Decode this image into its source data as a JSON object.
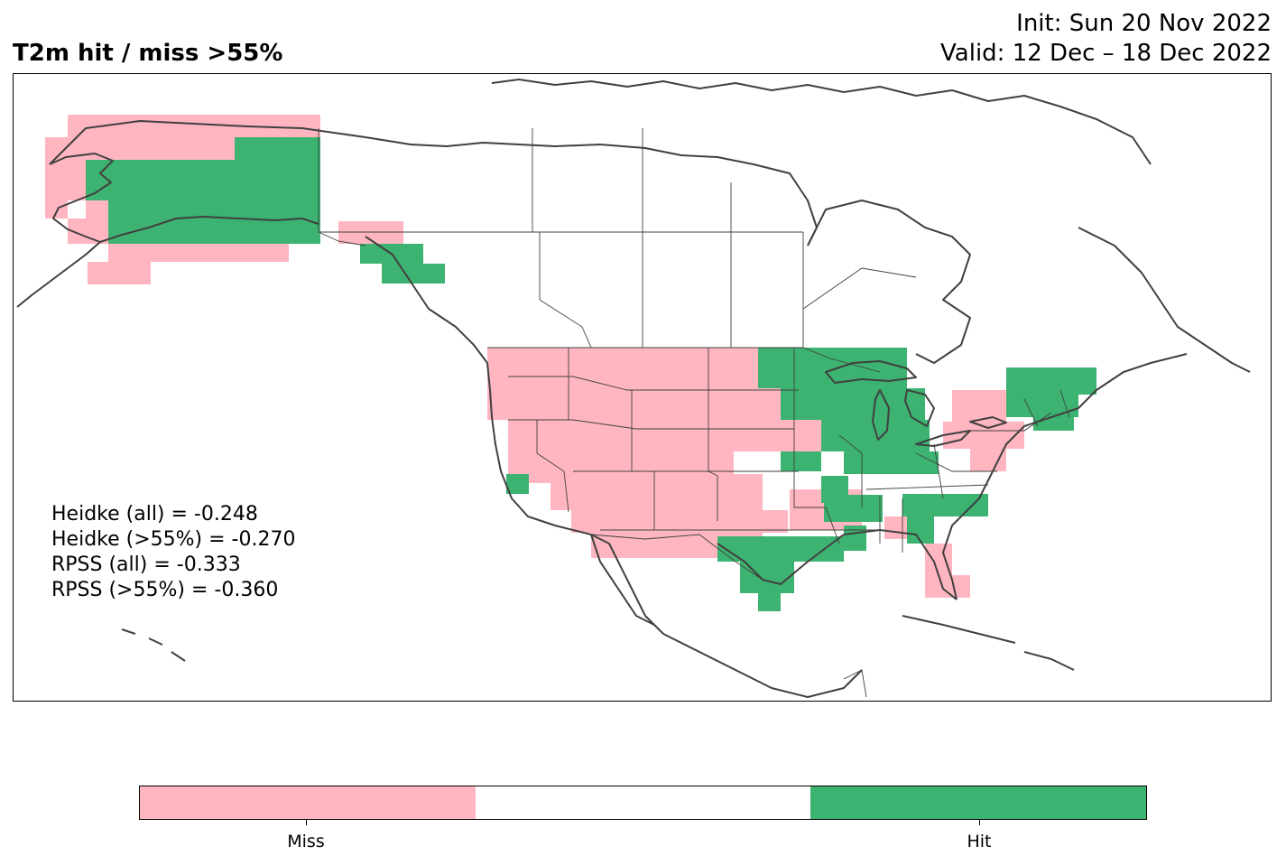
{
  "title": "T2m hit / miss  >55%",
  "init": "Init: Sun 20 Nov 2022",
  "valid": "Valid: 12 Dec – 18 Dec 2022",
  "scores": [
    "Heidke (all) = -0.248",
    "Heidke (>55%) = -0.270",
    "RPSS (all) = -0.333",
    "RPSS (>55%) = -0.360"
  ],
  "colors": {
    "miss": "#ffb6c1",
    "neutral": "#ffffff",
    "hit": "#3cb371",
    "coast": "#404040"
  },
  "colorbar": {
    "labels": [
      "Miss",
      "Hit"
    ]
  }
}
